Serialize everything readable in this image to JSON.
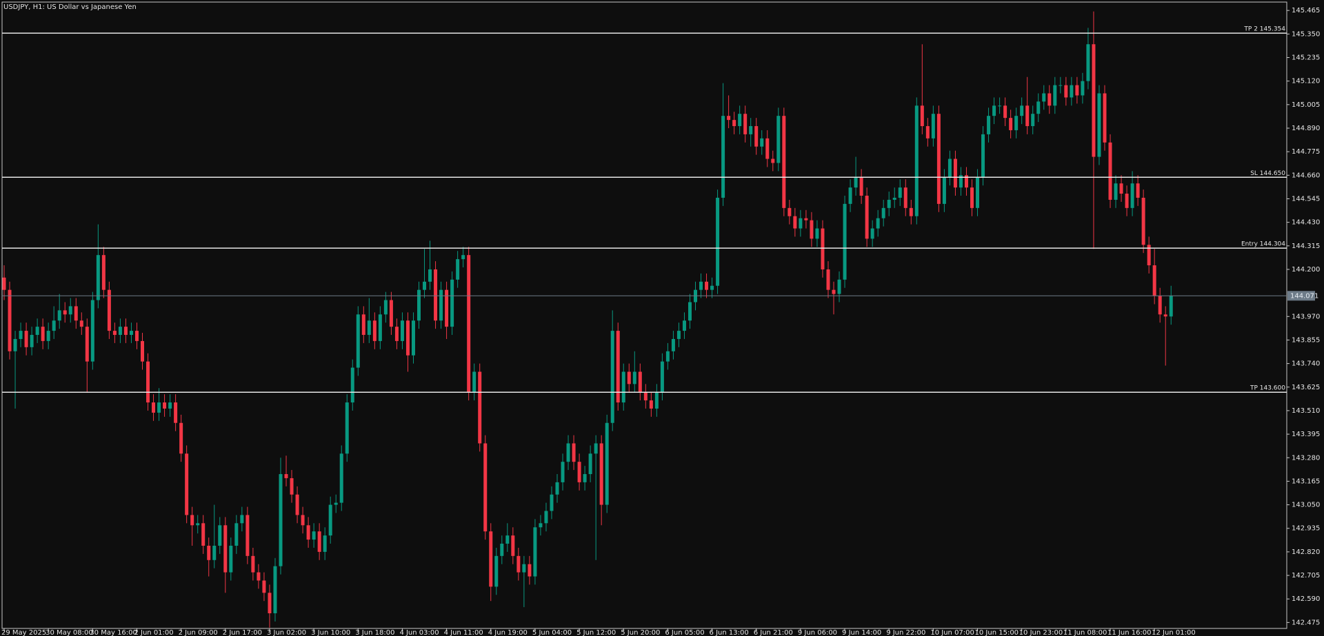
{
  "chart_data": {
    "type": "candlestick",
    "title": "USDJPY, H1:  US Dollar vs Japanese Yen",
    "up_color": "#089981",
    "down_color": "#f23645",
    "ylim": [
      142.446,
      145.506
    ],
    "yticks": [
      142.475,
      {
        "value": 142.59,
        "label": "142.590"
      },
      142.705,
      {
        "value": 142.82,
        "label": "142.820"
      },
      142.935,
      {
        "value": 143.05,
        "label": "143.050"
      },
      143.165,
      {
        "value": 143.28,
        "label": "143.280"
      },
      143.395,
      {
        "value": 143.51,
        "label": "143.510"
      },
      143.625,
      {
        "value": 143.74,
        "label": "143.740"
      },
      143.855,
      {
        "value": 143.97,
        "label": "143.970"
      },
      {
        "value": 144.2,
        "label": "144.200"
      },
      144.315,
      {
        "value": 144.43,
        "label": "144.430"
      },
      144.545,
      {
        "value": 144.66,
        "label": "144.660"
      },
      144.775,
      {
        "value": 144.89,
        "label": "144.890"
      },
      145.005,
      {
        "value": 145.12,
        "label": "145.120"
      },
      145.235,
      {
        "value": 145.35,
        "label": "145.350"
      },
      145.465
    ],
    "levels": [
      {
        "value": 145.354,
        "label": "TP 2 145.354"
      },
      {
        "value": 144.65,
        "label": "SL 144.650"
      },
      {
        "value": 144.304,
        "label": "Entry 144.304"
      },
      {
        "value": 143.6,
        "label": "TP 143.600"
      }
    ],
    "current_price": 144.071,
    "categories": [
      "29 May 2025",
      null,
      null,
      null,
      null,
      null,
      null,
      null,
      "30 May 08:00",
      null,
      null,
      null,
      null,
      null,
      null,
      null,
      "30 May 16:00",
      null,
      null,
      null,
      null,
      null,
      null,
      null,
      "2 Jun 01:00",
      null,
      null,
      null,
      null,
      null,
      null,
      null,
      "2 Jun 09:00",
      null,
      null,
      null,
      null,
      null,
      null,
      null,
      "2 Jun 17:00",
      null,
      null,
      null,
      null,
      null,
      null,
      null,
      "3 Jun 02:00",
      null,
      null,
      null,
      null,
      null,
      null,
      null,
      "3 Jun 10:00",
      null,
      null,
      null,
      null,
      null,
      null,
      null,
      "3 Jun 18:00",
      null,
      null,
      null,
      null,
      null,
      null,
      null,
      "4 Jun 03:00",
      null,
      null,
      null,
      null,
      null,
      null,
      null,
      "4 Jun 11:00",
      null,
      null,
      null,
      null,
      null,
      null,
      null,
      "4 Jun 19:00",
      null,
      null,
      null,
      null,
      null,
      null,
      null,
      "5 Jun 04:00",
      null,
      null,
      null,
      null,
      null,
      null,
      null,
      "5 Jun 12:00",
      null,
      null,
      null,
      null,
      null,
      null,
      null,
      "5 Jun 20:00",
      null,
      null,
      null,
      null,
      null,
      null,
      null,
      "6 Jun 05:00",
      null,
      null,
      null,
      null,
      null,
      null,
      null,
      "6 Jun 13:00",
      null,
      null,
      null,
      null,
      null,
      null,
      null,
      "6 Jun 21:00",
      null,
      null,
      null,
      null,
      null,
      null,
      null,
      "9 Jun 06:00",
      null,
      null,
      null,
      null,
      null,
      null,
      null,
      "9 Jun 14:00",
      null,
      null,
      null,
      null,
      null,
      null,
      null,
      "9 Jun 22:00",
      null,
      null,
      null,
      null,
      null,
      null,
      null,
      "10 Jun 07:00",
      null,
      null,
      null,
      null,
      null,
      null,
      null,
      "10 Jun 15:00",
      null,
      null,
      null,
      null,
      null,
      null,
      null,
      "10 Jun 23:00",
      null,
      null,
      null,
      null,
      null,
      null,
      null,
      "11 Jun 08:00",
      null,
      null,
      null,
      null,
      null,
      null,
      null,
      "11 Jun 16:00",
      null,
      null,
      null,
      null,
      null,
      null,
      null,
      "12 Jun 01:00",
      null,
      null,
      null
    ],
    "open": [
      144.16,
      144.1,
      143.8,
      143.86,
      143.9,
      143.82,
      143.88,
      143.92,
      143.85,
      143.9,
      143.95,
      144.0,
      143.98,
      144.02,
      143.95,
      143.92,
      143.75,
      144.05,
      144.27,
      144.1,
      143.9,
      143.88,
      143.92,
      143.88,
      143.9,
      143.85,
      143.75,
      143.55,
      143.5,
      143.55,
      143.52,
      143.55,
      143.45,
      143.3,
      143.0,
      142.95,
      142.96,
      142.85,
      142.78,
      142.85,
      142.95,
      142.72,
      142.85,
      142.96,
      143.0,
      142.8,
      142.72,
      142.68,
      142.62,
      142.52,
      142.75,
      143.2,
      143.18,
      143.1,
      143.0,
      142.95,
      142.88,
      142.92,
      142.82,
      142.9,
      143.05,
      143.06,
      143.3,
      143.55,
      143.72,
      143.98,
      143.88,
      143.95,
      143.85,
      143.98,
      144.05,
      143.92,
      143.85,
      143.95,
      143.78,
      143.95,
      144.1,
      144.14,
      144.2,
      143.95,
      144.1,
      143.92,
      144.15,
      144.25,
      144.27,
      143.6,
      143.7,
      143.35,
      142.92,
      142.65,
      142.8,
      142.86,
      142.9,
      142.8,
      142.72,
      142.76,
      142.7,
      142.94,
      142.96,
      143.02,
      143.1,
      143.16,
      143.26,
      143.35,
      143.26,
      143.16,
      143.2,
      143.3,
      143.35,
      143.05,
      143.45,
      143.9,
      143.55,
      143.7,
      143.64,
      143.7,
      143.6,
      143.56,
      143.52,
      143.6,
      143.75,
      143.8,
      143.86,
      143.9,
      143.95,
      144.04,
      144.1,
      144.14,
      144.1,
      144.12,
      144.55,
      144.95,
      144.93,
      144.9,
      144.96,
      144.86,
      144.9,
      144.8,
      144.84,
      144.74,
      144.72,
      144.95,
      144.5,
      144.46,
      144.4,
      144.45,
      144.44,
      144.35,
      144.4,
      144.2,
      144.1,
      144.08,
      144.15,
      144.52,
      144.6,
      144.65,
      144.56,
      144.35,
      144.4,
      144.45,
      144.5,
      144.54,
      144.55,
      144.6,
      144.5,
      144.46,
      145.0,
      144.9,
      144.84,
      144.96,
      144.52,
      144.65,
      144.74,
      144.6,
      144.66,
      144.6,
      144.5,
      144.65,
      144.86,
      144.95,
      145.0,
      145.0,
      144.94,
      144.88,
      144.95,
      145.0,
      144.9,
      144.96,
      145.02,
      145.06,
      145.0,
      145.1,
      145.1,
      145.04,
      145.1,
      145.05,
      145.12,
      145.3,
      144.75,
      145.06,
      144.82,
      144.54,
      144.62,
      144.57,
      144.5,
      144.62,
      144.55,
      144.32,
      144.22,
      144.07,
      143.98,
      143.97
    ],
    "high": [
      144.22,
      144.14,
      143.9,
      143.94,
      143.94,
      143.92,
      143.96,
      143.96,
      143.94,
      144.02,
      144.08,
      144.04,
      144.06,
      144.06,
      143.99,
      143.96,
      144.09,
      144.42,
      144.31,
      144.14,
      143.94,
      143.96,
      143.96,
      143.94,
      143.94,
      143.89,
      143.79,
      143.59,
      143.62,
      143.59,
      143.59,
      143.59,
      143.49,
      143.34,
      143.04,
      143.0,
      143.0,
      142.89,
      143.05,
      142.99,
      142.99,
      142.89,
      143.0,
      143.04,
      143.04,
      142.84,
      142.76,
      142.72,
      142.66,
      142.79,
      143.28,
      143.29,
      143.22,
      143.14,
      143.04,
      142.99,
      142.96,
      142.96,
      142.94,
      143.09,
      143.1,
      143.34,
      143.59,
      143.76,
      144.02,
      144.02,
      144.06,
      143.99,
      144.02,
      144.09,
      144.09,
      143.96,
      143.99,
      143.99,
      143.99,
      144.14,
      144.3,
      144.34,
      144.24,
      144.14,
      144.14,
      144.19,
      144.29,
      144.31,
      144.31,
      143.74,
      143.74,
      143.39,
      142.96,
      142.84,
      142.9,
      142.96,
      142.94,
      142.84,
      142.8,
      142.8,
      142.98,
      143.0,
      143.06,
      143.14,
      143.2,
      143.3,
      143.39,
      143.39,
      143.3,
      143.24,
      143.34,
      143.39,
      143.39,
      143.49,
      144.0,
      143.94,
      143.74,
      143.74,
      143.8,
      143.74,
      143.64,
      143.6,
      143.64,
      143.79,
      143.84,
      143.9,
      143.94,
      143.99,
      144.08,
      144.14,
      144.18,
      144.18,
      144.16,
      144.59,
      145.11,
      145.05,
      144.97,
      145.0,
      145.0,
      144.94,
      144.94,
      144.88,
      144.88,
      144.78,
      144.99,
      144.99,
      144.54,
      144.5,
      144.49,
      144.49,
      144.48,
      144.44,
      144.44,
      144.24,
      144.14,
      144.19,
      144.56,
      144.64,
      144.75,
      144.69,
      144.6,
      144.44,
      144.49,
      144.54,
      144.58,
      144.6,
      144.64,
      144.64,
      144.54,
      145.04,
      145.3,
      144.94,
      145.0,
      145.0,
      144.69,
      144.78,
      144.78,
      144.7,
      144.7,
      144.64,
      144.69,
      144.9,
      144.99,
      145.04,
      145.04,
      145.04,
      144.98,
      144.99,
      145.04,
      145.14,
      145.0,
      145.06,
      145.1,
      145.1,
      145.14,
      145.14,
      145.14,
      145.14,
      145.14,
      145.16,
      145.38,
      145.46,
      145.1,
      145.1,
      144.86,
      144.66,
      144.66,
      144.61,
      144.68,
      144.66,
      144.59,
      144.36,
      144.3,
      144.11,
      144.02,
      144.12
    ],
    "low": [
      144.05,
      143.76,
      143.52,
      143.82,
      143.78,
      143.78,
      143.84,
      143.81,
      143.81,
      143.86,
      143.91,
      143.94,
      143.94,
      143.91,
      143.88,
      143.6,
      143.71,
      144.01,
      144.06,
      143.86,
      143.84,
      143.84,
      143.84,
      143.84,
      143.81,
      143.71,
      143.51,
      143.46,
      143.46,
      143.48,
      143.48,
      143.41,
      143.26,
      142.96,
      142.85,
      142.91,
      142.81,
      142.7,
      142.74,
      142.81,
      142.62,
      142.68,
      142.81,
      142.92,
      142.76,
      142.68,
      142.64,
      142.58,
      142.45,
      142.48,
      142.71,
      143.14,
      143.06,
      142.96,
      142.91,
      142.84,
      142.84,
      142.78,
      142.78,
      142.86,
      143.01,
      143.02,
      143.26,
      143.51,
      143.68,
      143.84,
      143.84,
      143.81,
      143.81,
      143.94,
      143.88,
      143.81,
      143.81,
      143.7,
      143.74,
      143.91,
      144.06,
      144.1,
      143.91,
      143.91,
      143.86,
      143.88,
      144.11,
      144.21,
      143.56,
      143.56,
      143.31,
      142.88,
      142.58,
      142.61,
      142.76,
      142.82,
      142.76,
      142.68,
      142.55,
      142.66,
      142.66,
      142.9,
      142.92,
      142.98,
      143.06,
      143.12,
      143.22,
      143.22,
      143.12,
      143.12,
      143.16,
      142.78,
      142.95,
      143.01,
      143.41,
      143.51,
      143.51,
      143.6,
      143.6,
      143.56,
      143.52,
      143.48,
      143.48,
      143.56,
      143.71,
      143.76,
      143.82,
      143.86,
      143.91,
      144.0,
      144.06,
      144.06,
      144.06,
      144.08,
      144.51,
      144.89,
      144.86,
      144.86,
      144.82,
      144.8,
      144.76,
      144.76,
      144.7,
      144.68,
      144.68,
      144.46,
      144.42,
      144.36,
      144.36,
      144.4,
      144.31,
      144.31,
      144.16,
      144.06,
      143.98,
      144.04,
      144.11,
      144.48,
      144.56,
      144.52,
      144.31,
      144.31,
      144.36,
      144.41,
      144.46,
      144.5,
      144.51,
      144.46,
      144.42,
      144.42,
      144.86,
      144.8,
      144.8,
      144.48,
      144.48,
      144.61,
      144.56,
      144.56,
      144.56,
      144.46,
      144.46,
      144.61,
      144.82,
      144.91,
      144.96,
      144.9,
      144.84,
      144.84,
      144.91,
      144.86,
      144.86,
      144.92,
      144.98,
      144.96,
      144.96,
      145.06,
      145.0,
      145.0,
      145.01,
      145.01,
      145.08,
      144.3,
      144.71,
      144.78,
      144.5,
      144.5,
      144.53,
      144.46,
      144.46,
      144.51,
      144.28,
      144.18,
      144.03,
      143.94,
      143.73,
      143.93
    ],
    "close": [
      144.1,
      143.8,
      143.86,
      143.9,
      143.82,
      143.88,
      143.92,
      143.85,
      143.9,
      143.95,
      144.0,
      143.98,
      144.02,
      143.95,
      143.92,
      143.75,
      144.05,
      144.27,
      144.1,
      143.9,
      143.88,
      143.92,
      143.88,
      143.9,
      143.85,
      143.75,
      143.55,
      143.5,
      143.55,
      143.52,
      143.55,
      143.45,
      143.3,
      143.0,
      142.95,
      142.96,
      142.85,
      142.78,
      142.85,
      142.95,
      142.72,
      142.85,
      142.96,
      143.0,
      142.8,
      142.72,
      142.68,
      142.62,
      142.52,
      142.75,
      143.2,
      143.18,
      143.1,
      143.0,
      142.95,
      142.88,
      142.92,
      142.82,
      142.9,
      143.05,
      143.06,
      143.3,
      143.55,
      143.72,
      143.98,
      143.88,
      143.95,
      143.85,
      143.98,
      144.05,
      143.92,
      143.85,
      143.95,
      143.78,
      143.95,
      144.1,
      144.14,
      144.2,
      143.95,
      144.1,
      143.92,
      144.15,
      144.25,
      144.27,
      143.6,
      143.7,
      143.35,
      142.92,
      142.65,
      142.8,
      142.86,
      142.9,
      142.8,
      142.72,
      142.76,
      142.7,
      142.94,
      142.96,
      143.02,
      143.1,
      143.16,
      143.26,
      143.35,
      143.26,
      143.16,
      143.2,
      143.3,
      143.35,
      143.05,
      143.45,
      143.9,
      143.55,
      143.7,
      143.64,
      143.7,
      143.6,
      143.56,
      143.52,
      143.6,
      143.75,
      143.8,
      143.86,
      143.9,
      143.95,
      144.04,
      144.1,
      144.14,
      144.1,
      144.12,
      144.55,
      144.95,
      144.93,
      144.9,
      144.96,
      144.86,
      144.9,
      144.8,
      144.84,
      144.74,
      144.72,
      144.95,
      144.5,
      144.46,
      144.4,
      144.45,
      144.44,
      144.35,
      144.4,
      144.2,
      144.1,
      144.08,
      144.15,
      144.52,
      144.6,
      144.65,
      144.56,
      144.35,
      144.4,
      144.45,
      144.5,
      144.54,
      144.55,
      144.6,
      144.5,
      144.46,
      145.0,
      144.9,
      144.84,
      144.96,
      144.52,
      144.65,
      144.74,
      144.6,
      144.66,
      144.6,
      144.5,
      144.65,
      144.86,
      144.95,
      145.0,
      145.0,
      144.94,
      144.88,
      144.95,
      145.0,
      144.9,
      144.96,
      145.02,
      145.06,
      145.0,
      145.1,
      145.1,
      145.04,
      145.1,
      145.05,
      145.12,
      145.3,
      144.75,
      145.06,
      144.82,
      144.54,
      144.62,
      144.57,
      144.5,
      144.62,
      144.55,
      144.32,
      144.22,
      144.07,
      143.98,
      143.97,
      144.071
    ]
  }
}
